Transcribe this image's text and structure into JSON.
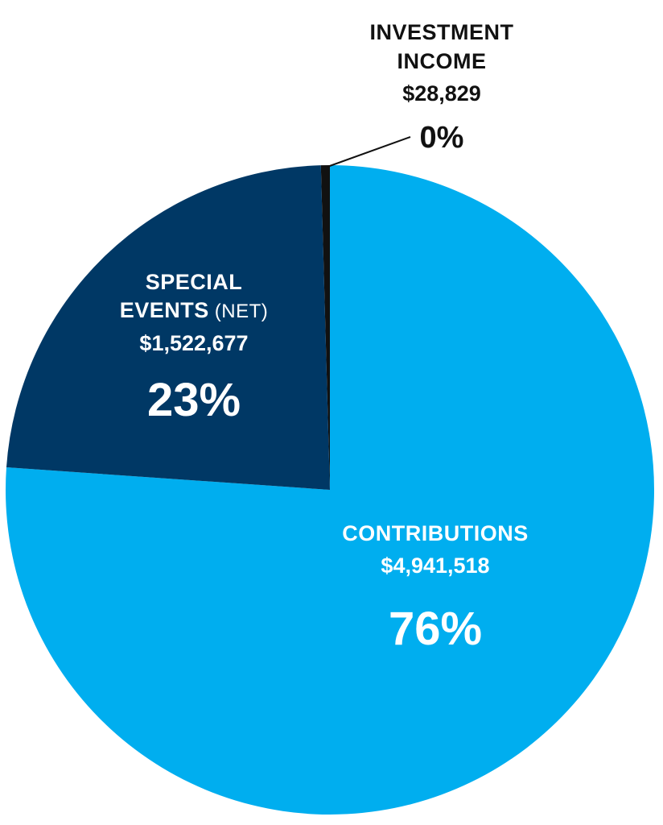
{
  "chart_data": {
    "type": "pie",
    "title": "",
    "slices": [
      {
        "key": "contributions",
        "label": "CONTRIBUTIONS",
        "qualifier": "",
        "amount": "$4,941,518",
        "value": 4941518,
        "percent_label": "76%",
        "color": "#00aeef",
        "text_color": "#ffffff"
      },
      {
        "key": "special_events",
        "label_lines": [
          "SPECIAL",
          "EVENTS"
        ],
        "qualifier": "(NET)",
        "amount": "$1,522,677",
        "value": 1522677,
        "percent_label": "23%",
        "color": "#003865",
        "text_color": "#ffffff"
      },
      {
        "key": "investment_income",
        "label_lines": [
          "INVESTMENT",
          "INCOME"
        ],
        "qualifier": "",
        "amount": "$28,829",
        "value": 28829,
        "percent_label": "0%",
        "color": "#111111",
        "text_color": "#111111"
      }
    ],
    "start_direction": "12 o'clock",
    "direction": "clockwise",
    "legend": "none"
  }
}
